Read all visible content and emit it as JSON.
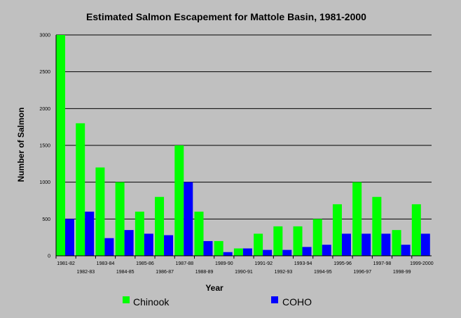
{
  "chart_data": {
    "type": "bar",
    "title": "Estimated Salmon Escapement for Mattole Basin, 1981-2000",
    "xlabel": "Year",
    "ylabel": "Number of Salmon",
    "ylim": [
      0,
      3000
    ],
    "yticks": [
      0,
      500,
      1000,
      1500,
      2000,
      2500,
      3000
    ],
    "grid": true,
    "legend_position": "bottom",
    "categories": [
      "1981-82",
      "1982-83",
      "1983-84",
      "1984-85",
      "1985-86",
      "1986-87",
      "1987-88",
      "1988-89",
      "1989-90",
      "1990-91",
      "1991-92",
      "1992-93",
      "1993-94",
      "1994-95",
      "1995-96",
      "1996-97",
      "1997-98",
      "1998-99",
      "1999-2000"
    ],
    "series": [
      {
        "name": "Chinook",
        "color": "#00ff00",
        "values": [
          3000,
          1800,
          1200,
          1000,
          600,
          800,
          1500,
          600,
          200,
          100,
          300,
          400,
          400,
          500,
          700,
          1000,
          800,
          350,
          700
        ]
      },
      {
        "name": "COHO",
        "color": "#0000ff",
        "values": [
          500,
          600,
          240,
          350,
          300,
          280,
          1000,
          200,
          50,
          100,
          80,
          80,
          120,
          150,
          300,
          300,
          300,
          150,
          300
        ]
      }
    ]
  }
}
